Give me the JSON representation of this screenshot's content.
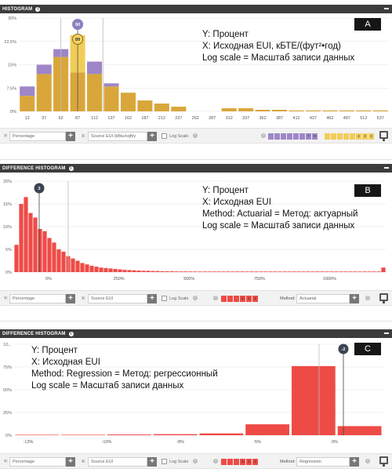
{
  "panels": [
    {
      "title": "HISTOGRAM",
      "tag": "A",
      "notes": [
        "Y: Процент",
        "X: Исходная EUI, кБТЕ/(фут²•год)",
        "Log scale = Масштаб записи данных"
      ],
      "controls": {
        "y_value": "Percentage",
        "x_value": "Source EUI (kBtu/sqft/y",
        "log_scale_label": "Log Scale",
        "swatches_a": [
          "",
          "",
          "",
          "",
          "",
          "",
          "7",
          "9"
        ],
        "swatches_b": [
          "",
          "",
          "",
          "",
          "",
          "4",
          "3",
          "3"
        ]
      }
    },
    {
      "title": "DIFFERENCE HISTOGRAM",
      "tag": "B",
      "notes": [
        "Y: Процент",
        "X: Исходная EUI",
        "Method: Actuarial = Метод: актуарный",
        "Log scale = Масштаб записи данных"
      ],
      "controls": {
        "y_value": "Percentage",
        "x_value": "Source EUI",
        "log_scale_label": "Log Scale",
        "swatches": [
          "",
          "",
          "",
          "5",
          "1",
          "2"
        ],
        "method_label": "Method:",
        "method_value": "Actuarial"
      }
    },
    {
      "title": "DIFFERENCE HISTOGRAM",
      "tag": "C",
      "notes": [
        "Y: Процент",
        "X: Исходная EUI",
        "Method: Regression = Метод: регрессионный",
        "Log scale = Масштаб записи данных"
      ],
      "controls": {
        "y_value": "Percentage",
        "x_value": "Source EUI",
        "log_scale_label": "Log Scale",
        "swatches": [
          "",
          "",
          "",
          "5",
          "1",
          "2"
        ],
        "method_label": "Method:",
        "method_value": "Regression"
      }
    }
  ],
  "chart_data": [
    {
      "type": "bar",
      "stacked": true,
      "categories": [
        "12",
        "37",
        "62",
        "87",
        "112",
        "137",
        "162",
        "187",
        "212",
        "237",
        "262",
        "287",
        "312",
        "337",
        "362",
        "387",
        "412",
        "437",
        "462",
        "487",
        "512",
        "537"
      ],
      "y_ticks": [
        "0%",
        "7.5%",
        "15%",
        "22.5%",
        "30%"
      ],
      "ylim": [
        0,
        30
      ],
      "series": [
        {
          "color": "#d9a63a",
          "values": [
            5,
            12,
            17.5,
            12.5,
            12,
            8,
            6,
            3.5,
            2.5,
            1.5,
            0,
            0,
            1,
            1,
            0.5,
            0.5,
            0.3,
            0.3,
            0.3,
            0.3,
            0.3,
            0.3
          ]
        },
        {
          "color": "#f1cd58",
          "values": [
            0,
            0,
            0,
            12,
            0,
            0,
            0,
            0,
            0,
            0,
            0,
            0,
            0,
            0,
            0,
            0,
            0,
            0,
            0,
            0,
            0,
            0
          ]
        },
        {
          "color": "#9e86c8",
          "values": [
            3,
            3,
            2.5,
            0,
            4,
            1,
            0,
            0,
            0,
            0,
            0,
            0,
            0,
            0,
            0,
            0,
            0,
            0,
            0,
            0,
            0,
            0
          ]
        }
      ],
      "markers": [
        {
          "label": "90"
        },
        {
          "label": "89"
        }
      ]
    },
    {
      "type": "bar",
      "x_ticks": [
        "0%",
        "250%",
        "500%",
        "750%",
        "1000%"
      ],
      "y_ticks": [
        "0%",
        "5%",
        "10%",
        "15%",
        "20%"
      ],
      "ylim": [
        0,
        20
      ],
      "color": "#ee4b47",
      "values": [
        6,
        15,
        16.5,
        13,
        12,
        9.5,
        9,
        7.5,
        6.5,
        5,
        4.5,
        3.5,
        3,
        2.5,
        2,
        1.7,
        1.4,
        1.2,
        1,
        0.9,
        0.8,
        0.7,
        0.6,
        0.5,
        0.45,
        0.4,
        0.35,
        0.3,
        0.3,
        0.25,
        0.25,
        0.2,
        0.2,
        0.2,
        0.15,
        0.15,
        0.15,
        0.12,
        0.12,
        0.1,
        0.1,
        0.1,
        0.1,
        0.1,
        0.1,
        0.1,
        0.1,
        0.1,
        0.1,
        0.1,
        0.1,
        0.1,
        0.1,
        0.1,
        0.1,
        0.1,
        0.1,
        0.1,
        0.1,
        0.1,
        0.1,
        0.1,
        0.1,
        0.1,
        0.1,
        0.1,
        0.1,
        0.1,
        0.1,
        0.1,
        0.1,
        0.1,
        0.1,
        0.1,
        0.1,
        0.1,
        0.1,
        0.1,
        1
      ],
      "markers": [
        {
          "label": "3"
        }
      ]
    },
    {
      "type": "bar",
      "x_ticks": [
        "-13%",
        "-10%",
        "-8%",
        "-5%",
        "-3%"
      ],
      "y_ticks": [
        "0%",
        "25%",
        "50%",
        "75%",
        "10..."
      ],
      "ylim": [
        0,
        100
      ],
      "color": "#ee4b47",
      "values": [
        0.3,
        0.5,
        0.8,
        1.2,
        2,
        12,
        76,
        10
      ],
      "markers": [
        {
          "label": "-2"
        }
      ]
    }
  ]
}
